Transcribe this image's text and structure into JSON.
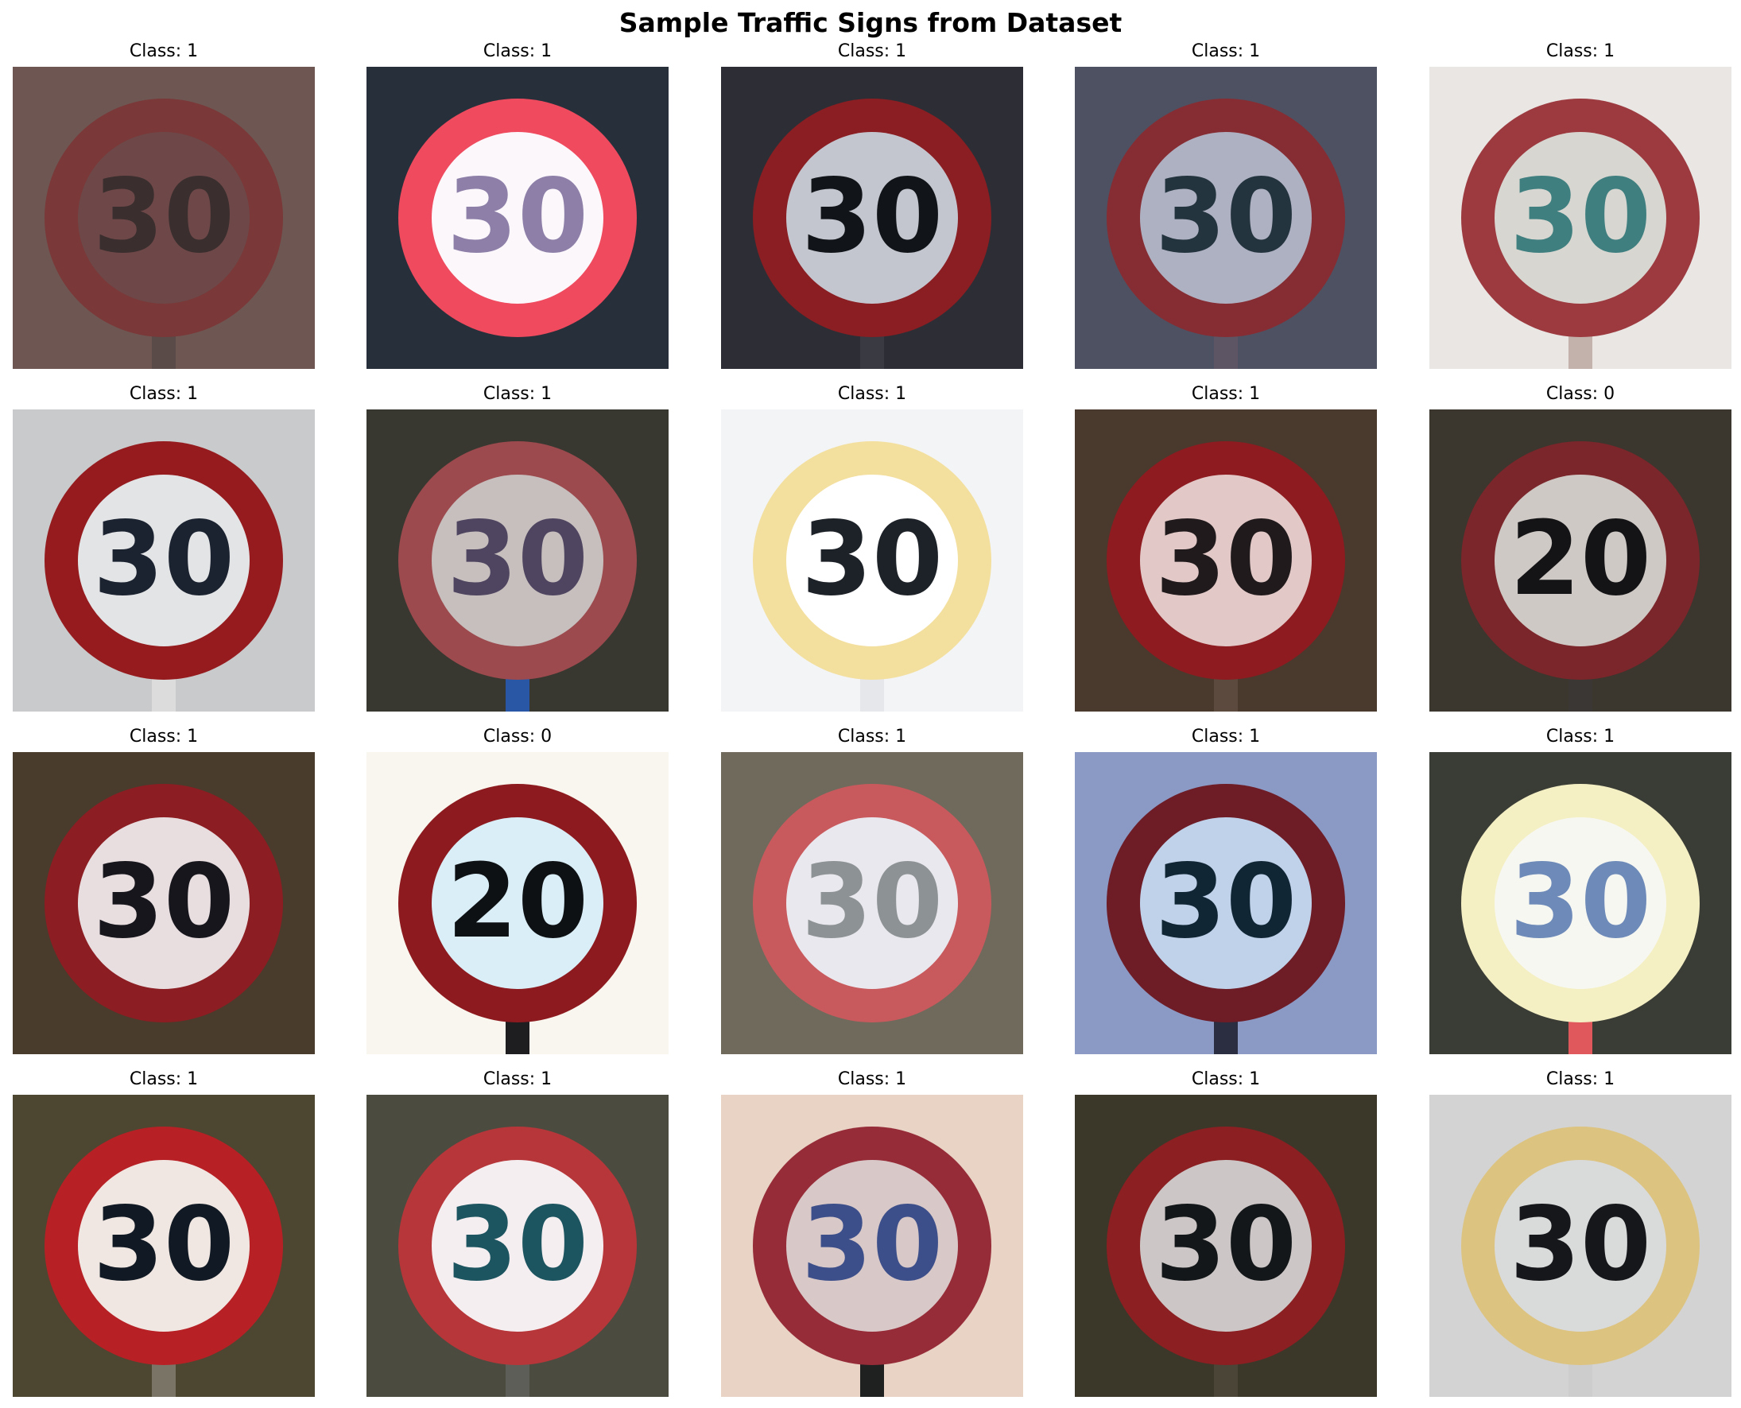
{
  "title": "Sample Traffic Signs from Dataset",
  "samples": [
    {
      "label": "Class: 1",
      "digits": "30",
      "bg": "#6e5753",
      "ring": "#7a3838",
      "face": "#6e4848",
      "ink": "#3a2e2e",
      "post": "#5a4a48"
    },
    {
      "label": "Class: 1",
      "digits": "30",
      "bg": "#27303a",
      "ring": "#ef4a5e",
      "face": "#fbf7fb",
      "ink": "#8d7fa8",
      "post": "#27303a"
    },
    {
      "label": "Class: 1",
      "digits": "30",
      "bg": "#2d2e35",
      "ring": "#8a1e22",
      "face": "#c4c6cf",
      "ink": "#111418",
      "post": "#3a3a42"
    },
    {
      "label": "Class: 1",
      "digits": "30",
      "bg": "#4e5162",
      "ring": "#862d33",
      "face": "#aeb1c2",
      "ink": "#24343e",
      "post": "#5d5563"
    },
    {
      "label": "Class: 1",
      "digits": "30",
      "bg": "#e9e6e3",
      "ring": "#9c3a40",
      "face": "#d8d6d0",
      "ink": "#3f7f80",
      "post": "#c3b2ac"
    },
    {
      "label": "Class: 1",
      "digits": "30",
      "bg": "#c9cacb",
      "ring": "#951b1e",
      "face": "#e3e4e6",
      "ink": "#1b2230",
      "post": "#dcdcdc"
    },
    {
      "label": "Class: 1",
      "digits": "30",
      "bg": "#383830",
      "ring": "#9c4a4e",
      "face": "#c6bfbd",
      "ink": "#4f4560",
      "post": "#2a56a6"
    },
    {
      "label": "Class: 1",
      "digits": "30",
      "bg": "#f3f4f6",
      "ring": "#f3df9e",
      "face": "#ffffff",
      "ink": "#1d2228",
      "post": "#e6e7ea"
    },
    {
      "label": "Class: 1",
      "digits": "30",
      "bg": "#4a3a2e",
      "ring": "#8d1b20",
      "face": "#e2c9c7",
      "ink": "#201a1c",
      "post": "#5c4a3e"
    },
    {
      "label": "Class: 0",
      "digits": "20",
      "bg": "#3b362e",
      "ring": "#7b262a",
      "face": "#cfc9c5",
      "ink": "#141417",
      "post": "#3a3734"
    },
    {
      "label": "Class: 1",
      "digits": "30",
      "bg": "#4a3c2c",
      "ring": "#8c1d22",
      "face": "#e8dee0",
      "ink": "#17161c",
      "post": "#4a3c2c"
    },
    {
      "label": "Class: 0",
      "digits": "20",
      "bg": "#f8f6ee",
      "ring": "#8d1a1f",
      "face": "#d9eef7",
      "ink": "#0e1114",
      "post": "#1e1e20"
    },
    {
      "label": "Class: 1",
      "digits": "30",
      "bg": "#6f6a5c",
      "ring": "#c85a5d",
      "face": "#e9e8ee",
      "ink": "#8d9294",
      "post": "#6f6a5c"
    },
    {
      "label": "Class: 1",
      "digits": "30",
      "bg": "#8b9ac5",
      "ring": "#6e1c26",
      "face": "#bfd2ea",
      "ink": "#112635",
      "post": "#2a2e40"
    },
    {
      "label": "Class: 1",
      "digits": "30",
      "bg": "#3a3c36",
      "ring": "#f4f0c4",
      "face": "#f7f7f2",
      "ink": "#6d8ab8",
      "post": "#e0575c"
    },
    {
      "label": "Class: 1",
      "digits": "30",
      "bg": "#4d4630",
      "ring": "#b72126",
      "face": "#f1e7e2",
      "ink": "#111a24",
      "post": "#7a7466"
    },
    {
      "label": "Class: 1",
      "digits": "30",
      "bg": "#4b4b40",
      "ring": "#b73639",
      "face": "#f4eef0",
      "ink": "#1c5560",
      "post": "#5e5e58"
    },
    {
      "label": "Class: 1",
      "digits": "30",
      "bg": "#e9d3c5",
      "ring": "#962c38",
      "face": "#d8c8c8",
      "ink": "#3c4f8a",
      "post": "#1e2120"
    },
    {
      "label": "Class: 1",
      "digits": "30",
      "bg": "#3b382a",
      "ring": "#8b1f22",
      "face": "#ccc7c6",
      "ink": "#141719",
      "post": "#4a4536"
    },
    {
      "label": "Class: 1",
      "digits": "30",
      "bg": "#d2d3d2",
      "ring": "#ddc380",
      "face": "#d9dada",
      "ink": "#15171a",
      "post": "#cccdcc"
    }
  ]
}
